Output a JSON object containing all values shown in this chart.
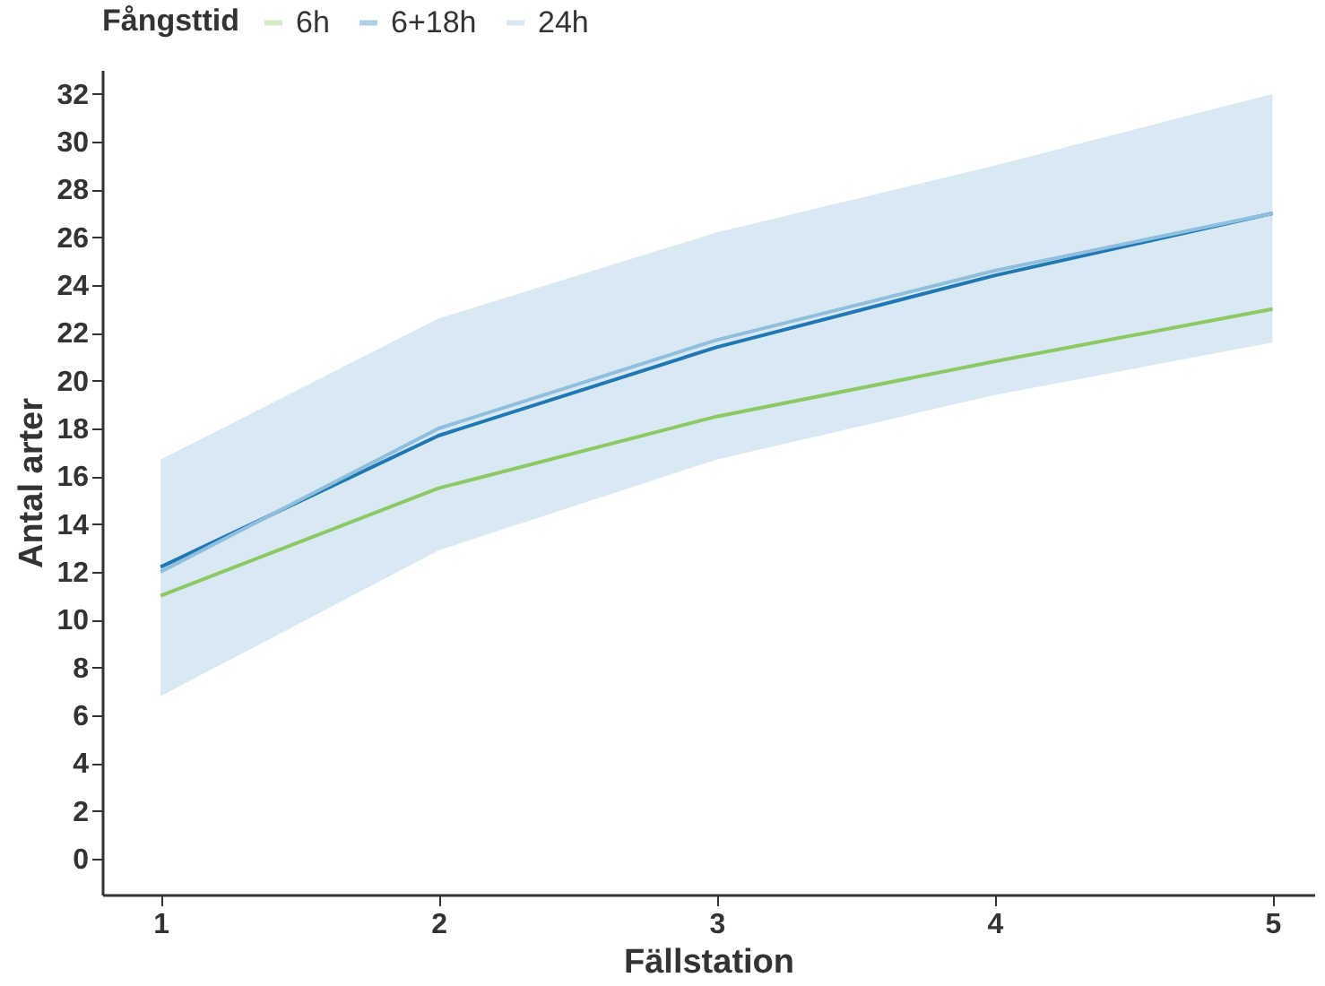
{
  "chart_data": {
    "type": "line",
    "xlabel": "Fällstation",
    "ylabel": "Antal arter",
    "legend_title": "Fångsttid",
    "x": [
      1,
      2,
      3,
      4,
      5
    ],
    "series": [
      {
        "name": "6h",
        "color": "#8cc864",
        "values": [
          11.0,
          15.5,
          18.5,
          20.8,
          23.0
        ]
      },
      {
        "name": "6+18h",
        "color": "#1f78b4",
        "values": [
          12.2,
          17.7,
          21.4,
          24.4,
          27.0
        ]
      },
      {
        "name": "24h",
        "color": "#8fbfdd",
        "values": [
          12.0,
          18.0,
          21.7,
          24.6,
          27.0
        ],
        "lower": [
          6.8,
          12.9,
          16.7,
          19.4,
          21.6
        ],
        "upper": [
          16.7,
          22.6,
          26.2,
          29.0,
          32.0
        ]
      }
    ],
    "xlim": [
      0.79,
      5.15
    ],
    "xticks": [
      1,
      2,
      3,
      4,
      5
    ],
    "ylim": [
      -1.5,
      33
    ],
    "yticks": [
      0,
      2,
      4,
      6,
      8,
      10,
      12,
      14,
      16,
      18,
      20,
      22,
      24,
      26,
      28,
      30,
      32
    ],
    "grid": false,
    "legend": "top",
    "marker": "none",
    "line_style": "solid"
  }
}
